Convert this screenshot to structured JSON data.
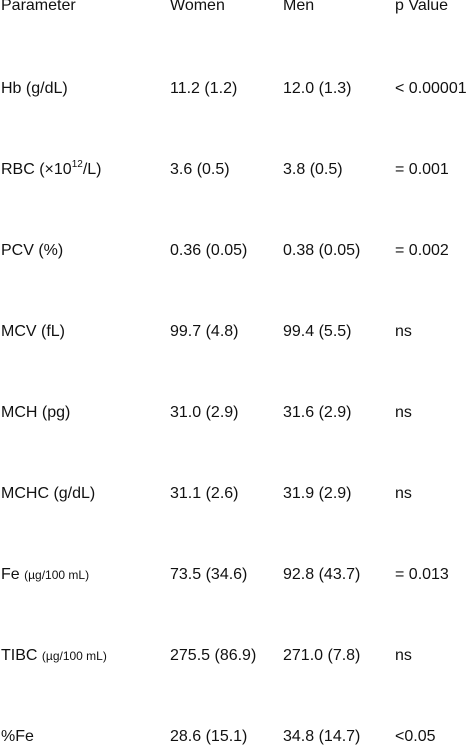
{
  "header": {
    "parameter": "Parameter",
    "women": "Women",
    "men": "Men",
    "p_value": "p Value"
  },
  "rows": [
    {
      "parameter": "Hb (g/dL)",
      "women": "11.2 (1.2)",
      "men": "12.0 (1.3)",
      "p": "< 0.00001"
    },
    {
      "parameter_main": "RBC (×10",
      "parameter_sup": "12",
      "parameter_tail": "/L)",
      "women": "3.6 (0.5)",
      "men": "3.8 (0.5)",
      "p": "= 0.001"
    },
    {
      "parameter": "PCV (%)",
      "women": "0.36 (0.05)",
      "men": "0.38 (0.05)",
      "p": "= 0.002"
    },
    {
      "parameter": "MCV (fL)",
      "women": "99.7 (4.8)",
      "men": "99.4 (5.5)",
      "p": "ns"
    },
    {
      "parameter": "MCH (pg)",
      "women": "31.0 (2.9)",
      "men": "31.6 (2.9)",
      "p": "ns"
    },
    {
      "parameter": "MCHC (g/dL)",
      "women": "31.1 (2.6)",
      "men": "31.9 (2.9)",
      "p": "ns"
    },
    {
      "parameter_main": "Fe",
      "parameter_unit": "(µg/100 mL)",
      "women": "73.5 (34.6)",
      "men": "92.8 (43.7)",
      "p": "= 0.013"
    },
    {
      "parameter_main": "TIBC",
      "parameter_unit": "(µg/100 mL)",
      "women": "275.5 (86.9)",
      "men": "271.0 (7.8)",
      "p": "ns"
    },
    {
      "parameter": "%Fe",
      "women": "28.6 (15.1)",
      "men": "34.8 (14.7)",
      "p": "<0.05"
    }
  ]
}
